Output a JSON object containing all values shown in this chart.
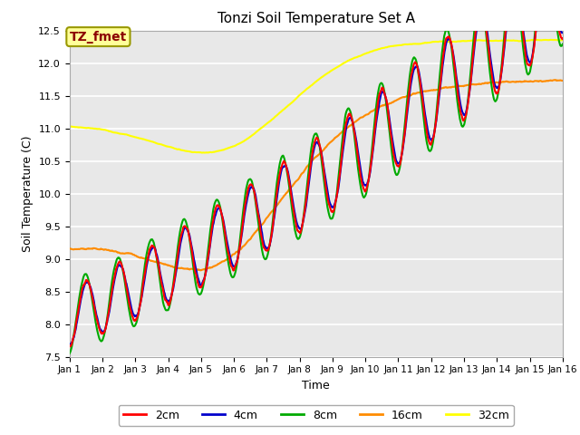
{
  "title": "Tonzi Soil Temperature Set A",
  "xlabel": "Time",
  "ylabel": "Soil Temperature (C)",
  "ylim": [
    7.5,
    12.5
  ],
  "xlim": [
    0,
    15
  ],
  "xtick_labels": [
    "Jan 1",
    "Jan 2",
    "Jan 3",
    "Jan 4",
    "Jan 5",
    "Jan 6",
    "Jan 7",
    "Jan 8",
    "Jan 9",
    "Jan 10",
    "Jan 11",
    "Jan 12",
    "Jan 13",
    "Jan 14",
    "Jan 15",
    "Jan 16"
  ],
  "ytick_values": [
    7.5,
    8.0,
    8.5,
    9.0,
    9.5,
    10.0,
    10.5,
    11.0,
    11.5,
    12.0,
    12.5
  ],
  "line_colors": {
    "2cm": "#FF0000",
    "4cm": "#0000CC",
    "8cm": "#00AA00",
    "16cm": "#FF8C00",
    "32cm": "#FFFF00"
  },
  "legend_label": "TZ_fmet",
  "legend_text_color": "#8B0000",
  "legend_bg_color": "#FFFF99",
  "legend_border_color": "#999900",
  "plot_bg_color": "#E8E8E8"
}
